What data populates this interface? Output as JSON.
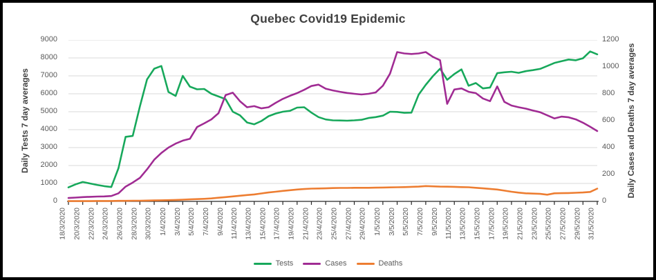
{
  "window": {
    "background": "#FFFFFF",
    "border_color": "#000000"
  },
  "colors": {
    "title_text": "#404040",
    "axis_text": "#595959",
    "gridline": "#D9D9D9",
    "axis_line": "#262626",
    "tests_green": "#17A85B",
    "cases_purple": "#A02B93",
    "deaths_orange": "#ED7D31"
  },
  "chart_data": {
    "type": "line",
    "title": "Quebec Covid19 Epidemic",
    "grid": true,
    "legend_position": "bottom",
    "left_axis": {
      "title": "Daily Tests 7 day averages",
      "min": 0,
      "max": 9000,
      "step": 1000
    },
    "right_axis": {
      "title": "Daily Cases and Deaths 7 day averages",
      "min": 0,
      "max": 1200,
      "step": 200
    },
    "x_tick_labels": [
      "18/3/2020",
      "20/3/2020",
      "22/3/2020",
      "24/3/2020",
      "26/3/2020",
      "28/3/2020",
      "30/3/2020",
      "1/4/2020",
      "3/4/2020",
      "5/4/2020",
      "7/4/2020",
      "9/4/2020",
      "11/4/2020",
      "13/4/2020",
      "15/4/2020",
      "17/4/2020",
      "19/4/2020",
      "21/4/2020",
      "23/4/2020",
      "25/4/2020",
      "27/4/2020",
      "29/4/2020",
      "1/5/2020",
      "3/5/2020",
      "5/5/2020",
      "7/5/2020",
      "9/5/2020",
      "11/5/2020",
      "13/5/2020",
      "15/5/2020",
      "17/5/2020",
      "19/5/2020",
      "21/5/2020",
      "23/5/2020",
      "25/5/2020",
      "27/5/2020",
      "29/5/2020",
      "31/5/2020"
    ],
    "points_per_tick": 2,
    "x_range_note": "daily values from 18/3/2020 to 31/5/2020, labels every 2 days",
    "series": [
      {
        "name": "Tests",
        "axis": "left",
        "color": "#17A85B",
        "values": [
          780,
          950,
          1080,
          1000,
          920,
          850,
          800,
          1850,
          3600,
          3650,
          5300,
          6800,
          7400,
          7550,
          6100,
          5880,
          7000,
          6400,
          6250,
          6270,
          6000,
          5850,
          5700,
          5000,
          4800,
          4400,
          4300,
          4480,
          4750,
          4900,
          5000,
          5050,
          5230,
          5250,
          4950,
          4700,
          4570,
          4520,
          4510,
          4500,
          4520,
          4550,
          4650,
          4700,
          4780,
          5000,
          4990,
          4940,
          4950,
          5950,
          6500,
          6980,
          7400,
          6780,
          7100,
          7360,
          6450,
          6600,
          6300,
          6350,
          7150,
          7200,
          7230,
          7170,
          7260,
          7320,
          7390,
          7550,
          7720,
          7820,
          7910,
          7870,
          7980,
          8360,
          8200
        ]
      },
      {
        "name": "Cases",
        "axis": "right",
        "color": "#A02B93",
        "values": [
          25,
          28,
          32,
          34,
          36,
          37,
          40,
          60,
          110,
          140,
          175,
          238,
          310,
          360,
          400,
          430,
          452,
          465,
          553,
          580,
          610,
          656,
          790,
          808,
          745,
          700,
          708,
          692,
          700,
          733,
          762,
          785,
          805,
          830,
          858,
          868,
          838,
          825,
          815,
          806,
          800,
          795,
          800,
          810,
          860,
          950,
          1110,
          1100,
          1096,
          1100,
          1110,
          1075,
          1050,
          725,
          832,
          840,
          815,
          805,
          765,
          745,
          855,
          740,
          713,
          700,
          690,
          676,
          663,
          640,
          617,
          630,
          625,
          610,
          585,
          555,
          523
        ]
      },
      {
        "name": "Deaths",
        "axis": "right",
        "color": "#ED7D31",
        "values": [
          2,
          2,
          2,
          2,
          3,
          3,
          3,
          4,
          4,
          5,
          5,
          6,
          7,
          8,
          9,
          11,
          13,
          15,
          17,
          19,
          22,
          27,
          32,
          37,
          42,
          47,
          52,
          59,
          66,
          72,
          78,
          83,
          88,
          92,
          95,
          96,
          97,
          99,
          100,
          100,
          101,
          101,
          101,
          102,
          103,
          104,
          105,
          106,
          108,
          110,
          114,
          112,
          110,
          109,
          108,
          106,
          105,
          101,
          97,
          93,
          88,
          80,
          72,
          65,
          60,
          58,
          56,
          50,
          60,
          61,
          62,
          64,
          66,
          70,
          95
        ]
      }
    ]
  }
}
